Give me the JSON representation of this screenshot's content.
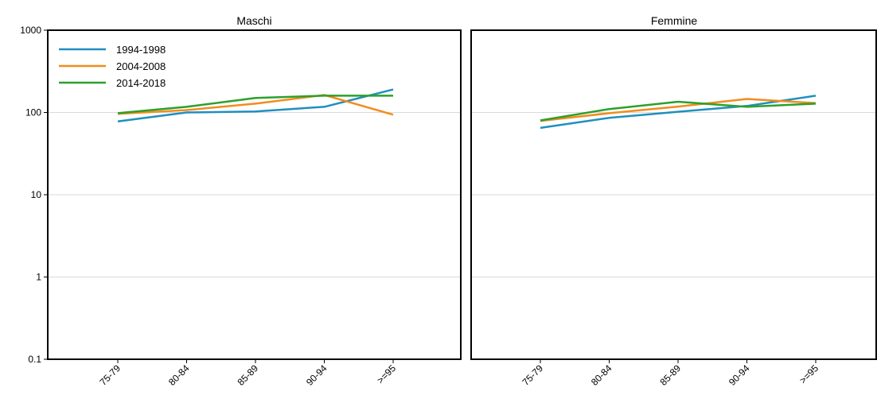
{
  "chart_data": {
    "type": "line",
    "y_scale": "log",
    "ylim": [
      0.1,
      1000
    ],
    "y_ticks": [
      "0.1",
      "1",
      "10",
      "100",
      "1000"
    ],
    "grid": true,
    "legend_position": "top-left (first panel)",
    "categories": [
      "75-79",
      "80-84",
      "85-89",
      "90-94",
      ">=95"
    ],
    "series_colors": {
      "1994-1998": "#1f8fc0",
      "2004-2008": "#f28c1e",
      "2014-2018": "#2ca02c"
    },
    "legend": [
      "1994-1998",
      "2004-2008",
      "2014-2018"
    ],
    "panels": [
      {
        "title": "Maschi",
        "series": [
          {
            "name": "1994-1998",
            "values": [
              78,
              100,
              103,
              117,
              190
            ]
          },
          {
            "name": "2004-2008",
            "values": [
              96,
              107,
              128,
              163,
              94
            ]
          },
          {
            "name": "2014-2018",
            "values": [
              98,
              117,
              150,
              160,
              160
            ]
          }
        ]
      },
      {
        "title": "Femmine",
        "series": [
          {
            "name": "1994-1998",
            "values": [
              65,
              86,
              102,
              120,
              160
            ]
          },
          {
            "name": "2004-2008",
            "values": [
              79,
              98,
              118,
              146,
              130
            ]
          },
          {
            "name": "2014-2018",
            "values": [
              80,
              110,
              135,
              117,
              128
            ]
          }
        ]
      }
    ]
  }
}
